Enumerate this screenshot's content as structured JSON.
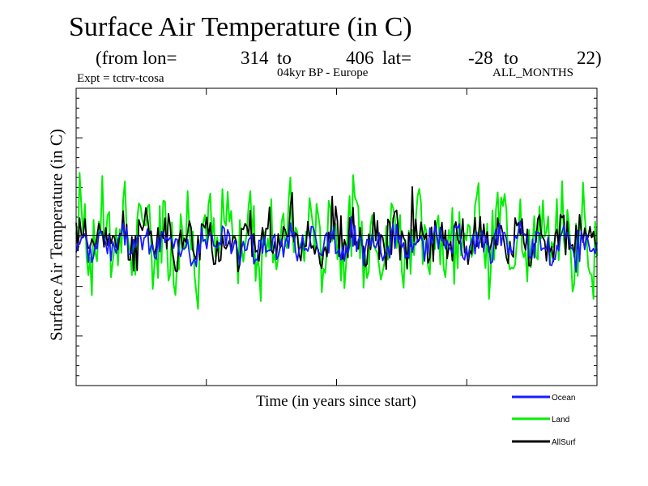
{
  "title": "Surface Air Temperature (in C)",
  "subtitle": {
    "from_label": "(from lon=",
    "lon_start": "314",
    "to1": "to",
    "lon_end": "406",
    "lat_label": "lat=",
    "lat_start": "-28",
    "to2": "to",
    "lat_end": "22)"
  },
  "expt": "Expt = tctrv-tcosa",
  "region": "04kyr BP - Europe",
  "months": "ALL_MONTHS",
  "colors": {
    "ocean": "#1a1aff",
    "land": "#00ee00",
    "allsurf": "#000000"
  },
  "chart_data": {
    "type": "line",
    "title": "Surface Air Temperature (in C)",
    "xlabel": "Time (in years since start)",
    "ylabel": "Surface Air Temperature (in C)",
    "x_ticks_shown": false,
    "y_ticks_shown": false,
    "n_points": 300,
    "series_description": "monthly anomaly series, unlabelled axes (relative units 0-100)",
    "reference_line": 50.5,
    "ylim": [
      0,
      100
    ],
    "legend": [
      "Ocean",
      "Land",
      "AllSurf"
    ],
    "legend_position": "bottom-right",
    "series": [
      {
        "name": "Ocean",
        "key": "ocean",
        "generator": {
          "mean": 47.5,
          "amp": 8,
          "seed": 3
        }
      },
      {
        "name": "Land",
        "key": "land",
        "generator": {
          "mean": 50,
          "amp": 22,
          "seed": 7
        }
      },
      {
        "name": "AllSurf",
        "key": "allsurf",
        "generator": {
          "mean": 49,
          "amp": 12,
          "seed": 11
        }
      }
    ]
  }
}
